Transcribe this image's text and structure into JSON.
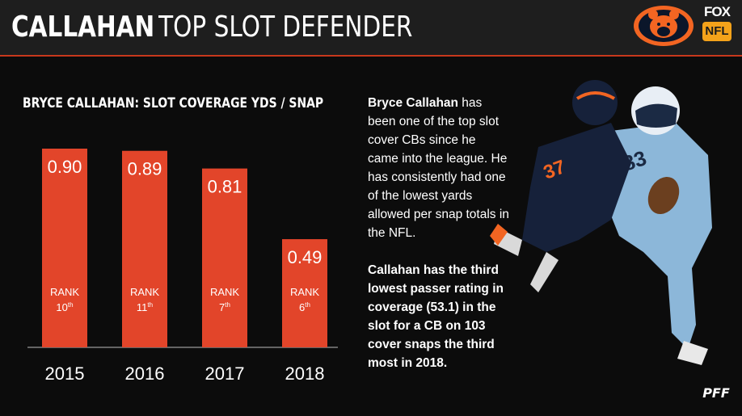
{
  "header": {
    "title_bold": "CALLAHAN",
    "title_rest": "TOP SLOT DEFENDER"
  },
  "logos": {
    "bears": "chicago-bears-logo",
    "fox_text": "FOX",
    "nfl_text": "NFL",
    "pff_text": "PFF"
  },
  "colors": {
    "bar": "#e2452a",
    "accent_line": "#c8381c",
    "header_bg": "#1e1e1e",
    "page_bg": "#0c0c0c"
  },
  "chart_data": {
    "type": "bar",
    "title": "BRYCE CALLAHAN: SLOT COVERAGE YDS / SNAP",
    "categories": [
      "2015",
      "2016",
      "2017",
      "2018"
    ],
    "values": [
      0.9,
      0.89,
      0.81,
      0.49
    ],
    "value_labels": [
      "0.90",
      "0.89",
      "0.81",
      "0.49"
    ],
    "rank_label": "RANK",
    "ranks": [
      {
        "num": "10",
        "suffix": "th"
      },
      {
        "num": "11",
        "suffix": "th"
      },
      {
        "num": "7",
        "suffix": "th"
      },
      {
        "num": "6",
        "suffix": "th"
      }
    ],
    "ylim": [
      0,
      1.0
    ],
    "grid": false,
    "legend": "none"
  },
  "body": {
    "p1_name": "Bryce Callahan",
    "p1_rest": " has been one of the top slot cover CBs since he came into the league. He has consistently had one of the lowest yards allowed per snap totals in the NFL.",
    "p2": "Callahan has the third lowest passer rating in coverage (53.1) in the slot for a CB on 103 cover snaps the third most in 2018."
  }
}
